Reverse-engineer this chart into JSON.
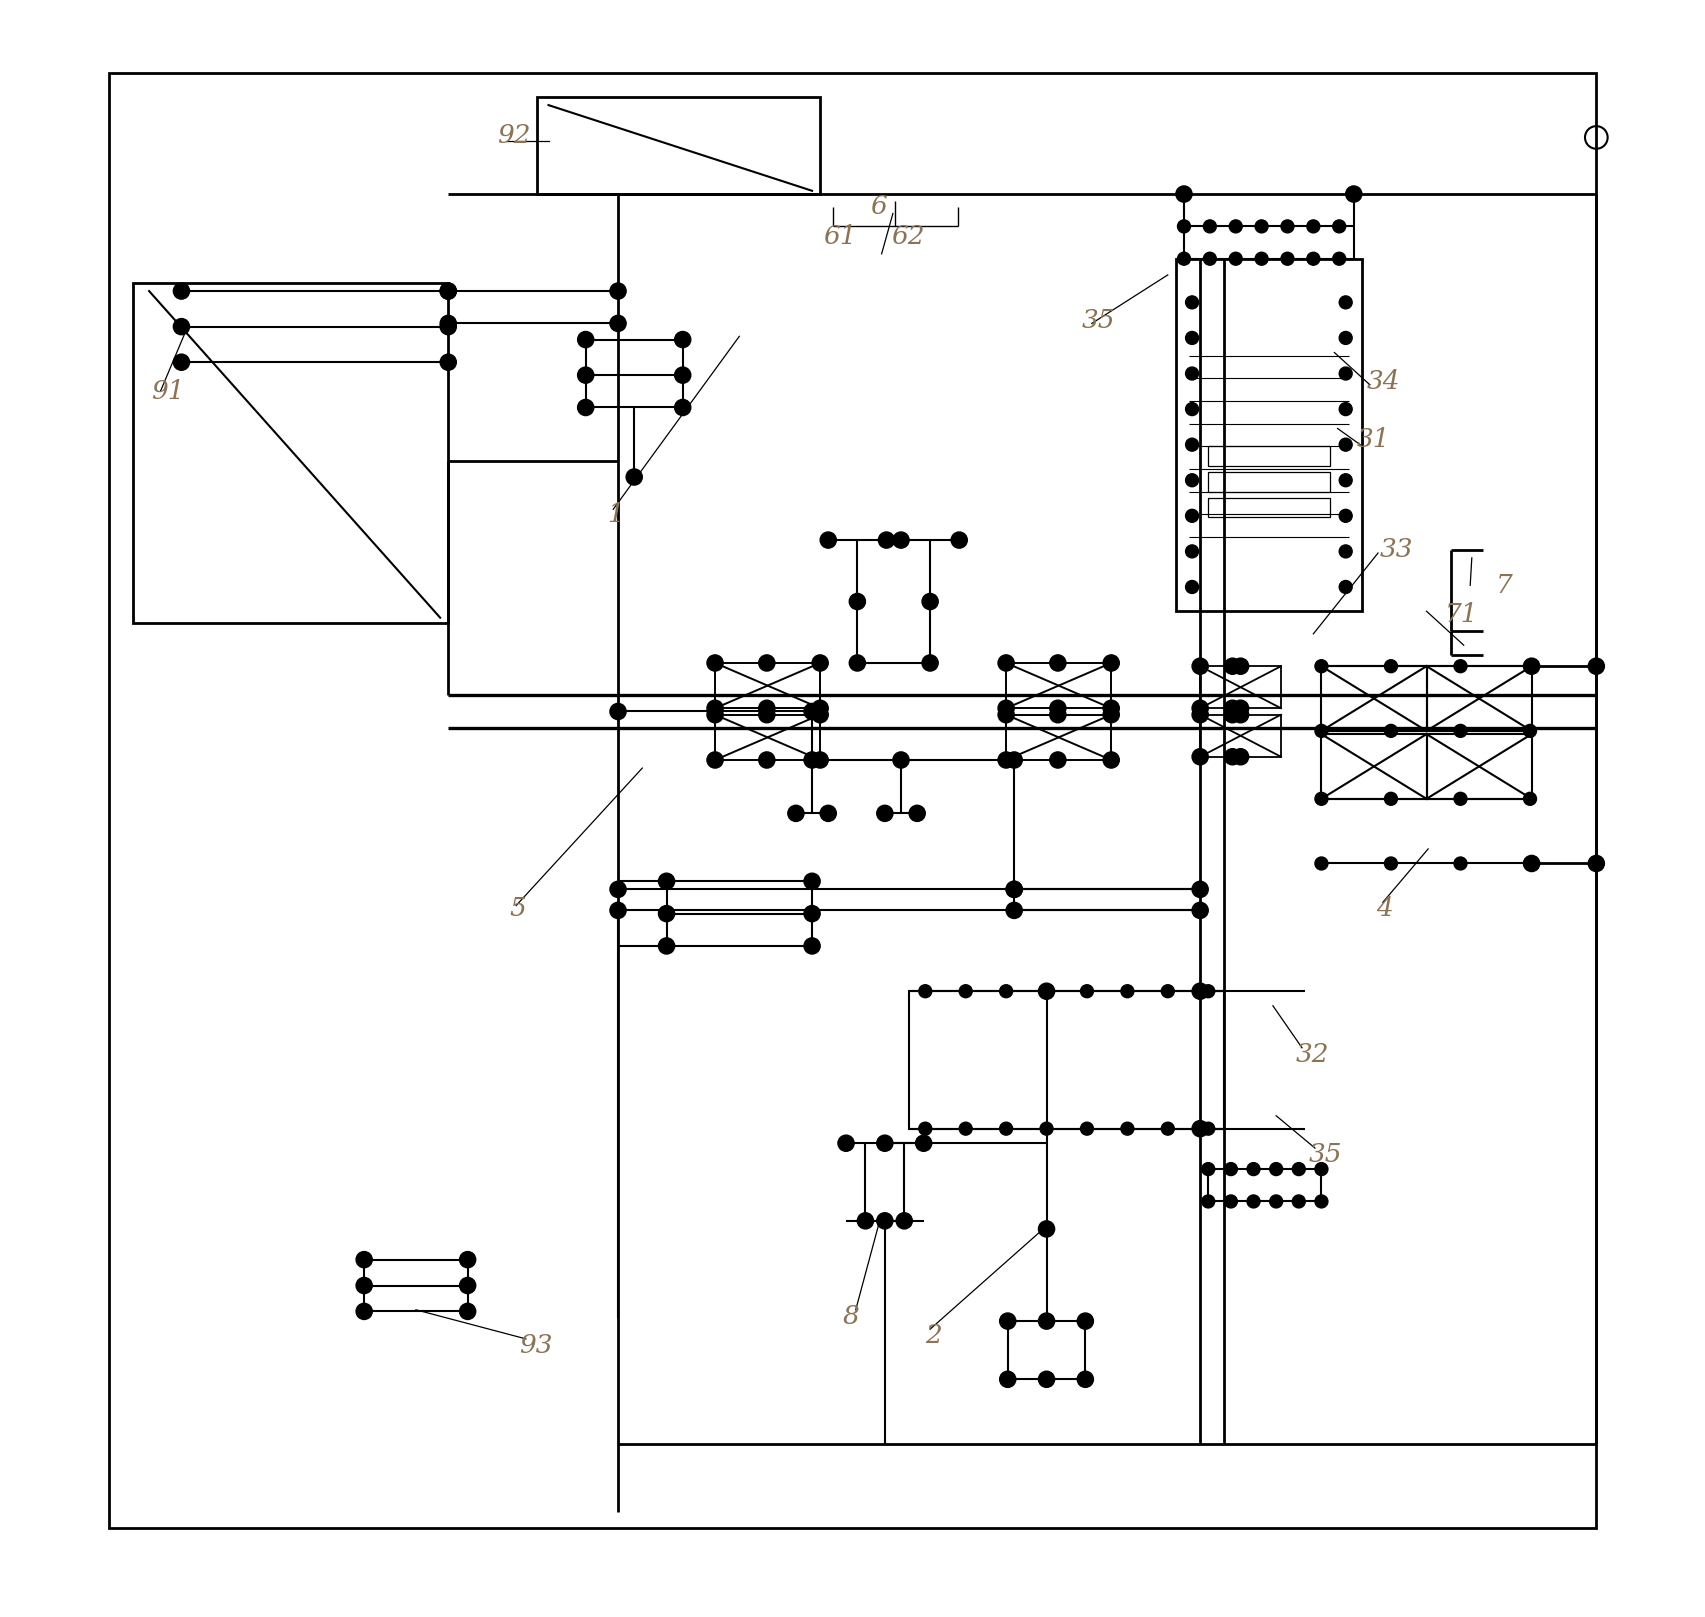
{
  "bg_color": "#ffffff",
  "line_color": "#000000",
  "label_color": "#8B7355",
  "figsize": [
    17.05,
    16.17
  ],
  "dpi": 100
}
